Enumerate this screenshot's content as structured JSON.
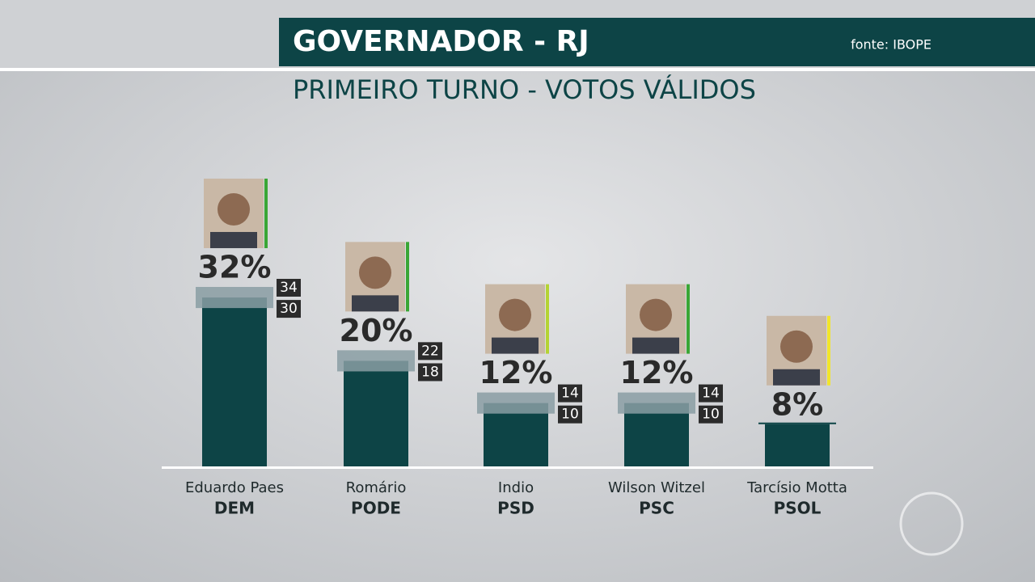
{
  "chart_data": {
    "type": "bar",
    "title": "GOVERNADOR - RJ",
    "subtitle": "PRIMEIRO TURNO - VOTOS VÁLIDOS",
    "source": "fonte: IBOPE",
    "categories": [
      "Eduardo Paes",
      "Romário",
      "Indio",
      "Wilson Witzel",
      "Tarcísio Motta"
    ],
    "parties": [
      "DEM",
      "PODE",
      "PSD",
      "PSC",
      "PSOL"
    ],
    "values": [
      32,
      20,
      12,
      12,
      8
    ],
    "value_labels": [
      "32%",
      "20%",
      "12%",
      "12%",
      "8%"
    ],
    "upper": [
      34,
      22,
      14,
      14,
      null
    ],
    "lower": [
      30,
      18,
      10,
      10,
      null
    ],
    "color": "#0d4446",
    "marker_colors": [
      "#3aa635",
      "#3aa635",
      "#b5d334",
      "#3aa635",
      "#f2e52a"
    ]
  }
}
